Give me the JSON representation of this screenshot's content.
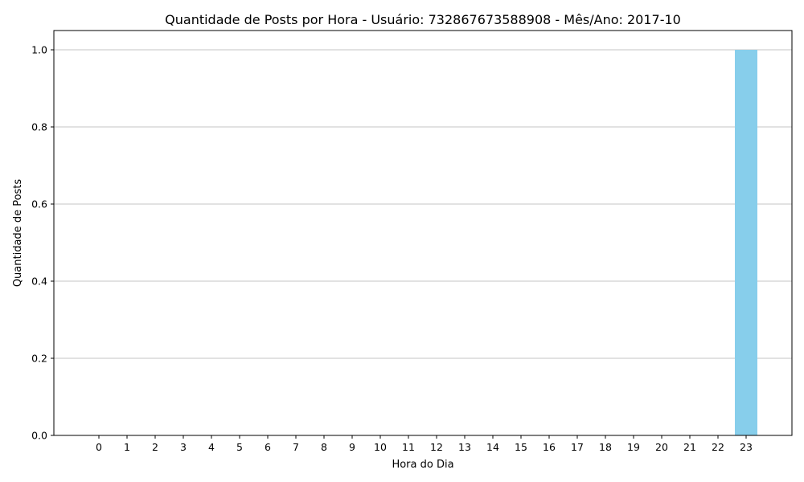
{
  "chart_data": {
    "type": "bar",
    "title": "Quantidade de Posts por Hora - Usuário: 732867673588908 - Mês/Ano: 2017-10",
    "xlabel": "Hora do Dia",
    "ylabel": "Quantidade de Posts",
    "categories": [
      "0",
      "1",
      "2",
      "3",
      "4",
      "5",
      "6",
      "7",
      "8",
      "9",
      "10",
      "11",
      "12",
      "13",
      "14",
      "15",
      "16",
      "17",
      "18",
      "19",
      "20",
      "21",
      "22",
      "23"
    ],
    "values": [
      0,
      0,
      0,
      0,
      0,
      0,
      0,
      0,
      0,
      0,
      0,
      0,
      0,
      0,
      0,
      0,
      0,
      0,
      0,
      0,
      0,
      0,
      0,
      1
    ],
    "ylim": [
      0,
      1.05
    ],
    "yticks": [
      "0.0",
      "0.2",
      "0.4",
      "0.6",
      "0.8",
      "1.0"
    ],
    "bar_color": "#87ceeb",
    "grid": "y"
  }
}
